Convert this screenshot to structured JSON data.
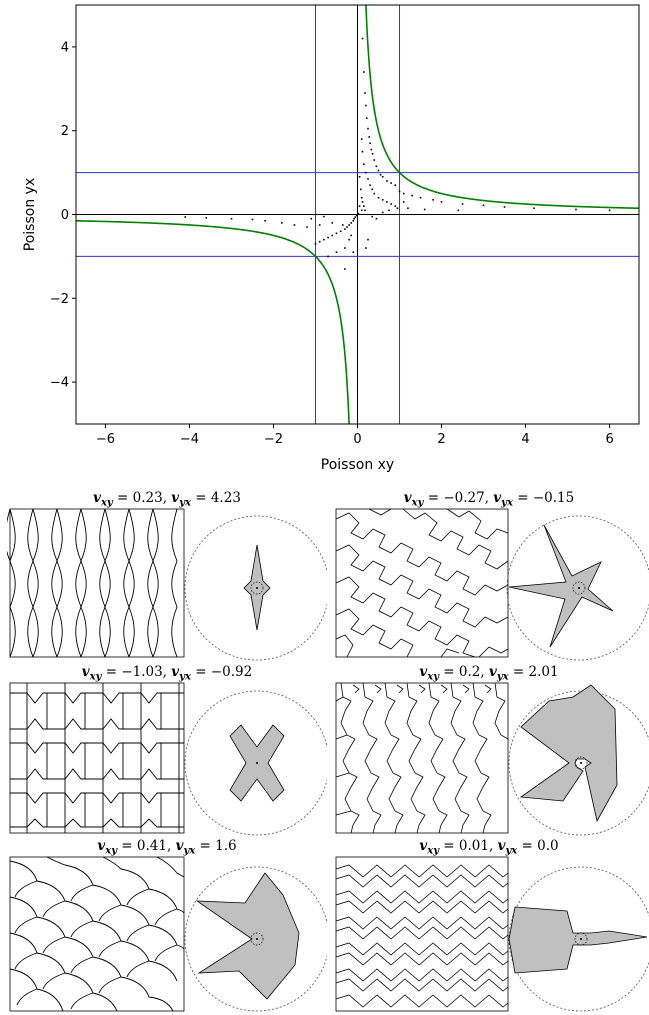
{
  "chart_data": {
    "type": "scatter",
    "xlabel": "Poisson xy",
    "ylabel": "Poisson yx",
    "xlim": [
      -6.7,
      6.7
    ],
    "ylim": [
      -5,
      5
    ],
    "xticks": [
      -6,
      -4,
      -2,
      0,
      2,
      4,
      6
    ],
    "yticks": [
      -4,
      -2,
      0,
      2,
      4
    ],
    "xtick_labels": [
      "−6",
      "−4",
      "−2",
      "0",
      "2",
      "4",
      "6"
    ],
    "ytick_labels": [
      "−4",
      "−2",
      "0",
      "2",
      "4"
    ],
    "grid": false,
    "reference_lines": {
      "vertical": [
        -1,
        0,
        1
      ],
      "horizontal": [
        -1,
        0,
        1
      ]
    },
    "curve": {
      "equation": "yx = 1 / xy",
      "color": "#008000"
    },
    "scatter_points": [
      [
        0.12,
        4.2
      ],
      [
        0.15,
        3.4
      ],
      [
        0.18,
        2.9
      ],
      [
        0.2,
        2.6
      ],
      [
        0.22,
        2.3
      ],
      [
        0.25,
        2.05
      ],
      [
        0.28,
        1.85
      ],
      [
        0.3,
        1.7
      ],
      [
        0.33,
        1.55
      ],
      [
        0.36,
        1.45
      ],
      [
        0.4,
        1.3
      ],
      [
        0.45,
        1.15
      ],
      [
        0.5,
        1.05
      ],
      [
        0.55,
        0.95
      ],
      [
        0.6,
        0.9
      ],
      [
        0.7,
        0.8
      ],
      [
        0.8,
        0.75
      ],
      [
        0.9,
        0.7
      ],
      [
        1.0,
        0.55
      ],
      [
        1.1,
        0.5
      ],
      [
        1.3,
        0.45
      ],
      [
        1.5,
        0.4
      ],
      [
        1.8,
        0.35
      ],
      [
        2.0,
        0.3
      ],
      [
        2.5,
        0.25
      ],
      [
        3.0,
        0.22
      ],
      [
        3.5,
        0.18
      ],
      [
        4.2,
        0.15
      ],
      [
        5.2,
        0.12
      ],
      [
        6.0,
        0.1
      ],
      [
        0.1,
        1.8
      ],
      [
        0.12,
        1.5
      ],
      [
        0.15,
        1.2
      ],
      [
        0.2,
        1.0
      ],
      [
        0.25,
        0.85
      ],
      [
        0.3,
        0.7
      ],
      [
        0.35,
        0.6
      ],
      [
        0.4,
        0.5
      ],
      [
        0.5,
        0.4
      ],
      [
        0.6,
        0.35
      ],
      [
        0.7,
        0.3
      ],
      [
        0.8,
        0.25
      ],
      [
        0.9,
        0.2
      ],
      [
        1.2,
        0.15
      ],
      [
        1.6,
        0.12
      ],
      [
        2.4,
        0.1
      ],
      [
        0.05,
        0.9
      ],
      [
        0.08,
        0.6
      ],
      [
        0.1,
        0.4
      ],
      [
        0.12,
        0.3
      ],
      [
        0.15,
        0.2
      ],
      [
        0.18,
        0.1
      ],
      [
        0.05,
        0.2
      ],
      [
        0.1,
        0.1
      ],
      [
        0.02,
        0.02
      ],
      [
        -0.02,
        -0.02
      ],
      [
        -0.05,
        -0.06
      ],
      [
        -0.08,
        -0.1
      ],
      [
        -0.1,
        -0.15
      ],
      [
        -0.15,
        -0.2
      ],
      [
        -0.2,
        -0.25
      ],
      [
        -0.25,
        -0.3
      ],
      [
        -0.3,
        -0.35
      ],
      [
        -0.4,
        -0.4
      ],
      [
        -0.5,
        -0.45
      ],
      [
        -0.6,
        -0.5
      ],
      [
        -0.7,
        -0.55
      ],
      [
        -0.8,
        -0.6
      ],
      [
        -0.9,
        -0.65
      ],
      [
        -1.0,
        -0.7
      ],
      [
        -0.3,
        -0.8
      ],
      [
        -0.5,
        -0.9
      ],
      [
        -0.7,
        -1.0
      ],
      [
        -0.2,
        -0.6
      ],
      [
        -0.15,
        -0.5
      ],
      [
        -0.35,
        -0.25
      ],
      [
        -0.6,
        -0.2
      ],
      [
        -0.9,
        -0.25
      ],
      [
        -1.2,
        -0.3
      ],
      [
        -1.5,
        -0.25
      ],
      [
        -1.8,
        -0.2
      ],
      [
        -2.2,
        -0.15
      ],
      [
        -2.5,
        -0.12
      ],
      [
        -3.0,
        -0.1
      ],
      [
        -3.6,
        -0.08
      ],
      [
        -4.1,
        -0.06
      ],
      [
        -1.1,
        -0.1
      ],
      [
        -0.8,
        -0.05
      ],
      [
        0.35,
        -0.05
      ],
      [
        0.45,
        -0.1
      ],
      [
        0.6,
        0.05
      ],
      [
        0.75,
        0.1
      ],
      [
        0.95,
        0.15
      ],
      [
        1.1,
        0.3
      ],
      [
        0.25,
        -0.6
      ],
      [
        0.2,
        -0.8
      ],
      [
        -0.3,
        -1.3
      ],
      [
        -0.1,
        -0.9
      ]
    ],
    "panels": [
      {
        "vxy": "0.23",
        "vyx": "4.23"
      },
      {
        "vxy": "−0.27",
        "vyx": "−0.15"
      },
      {
        "vxy": "−1.03",
        "vyx": "−0.92"
      },
      {
        "vxy": "0.2",
        "vyx": "2.01"
      },
      {
        "vxy": "0.41",
        "vyx": "1.6"
      },
      {
        "vxy": "0.01",
        "vyx": "0.0"
      }
    ],
    "colors": {
      "curve": "#008000",
      "reference": "#3333cc",
      "points": "#000000",
      "shape_fill": "#c0c0c0"
    }
  }
}
